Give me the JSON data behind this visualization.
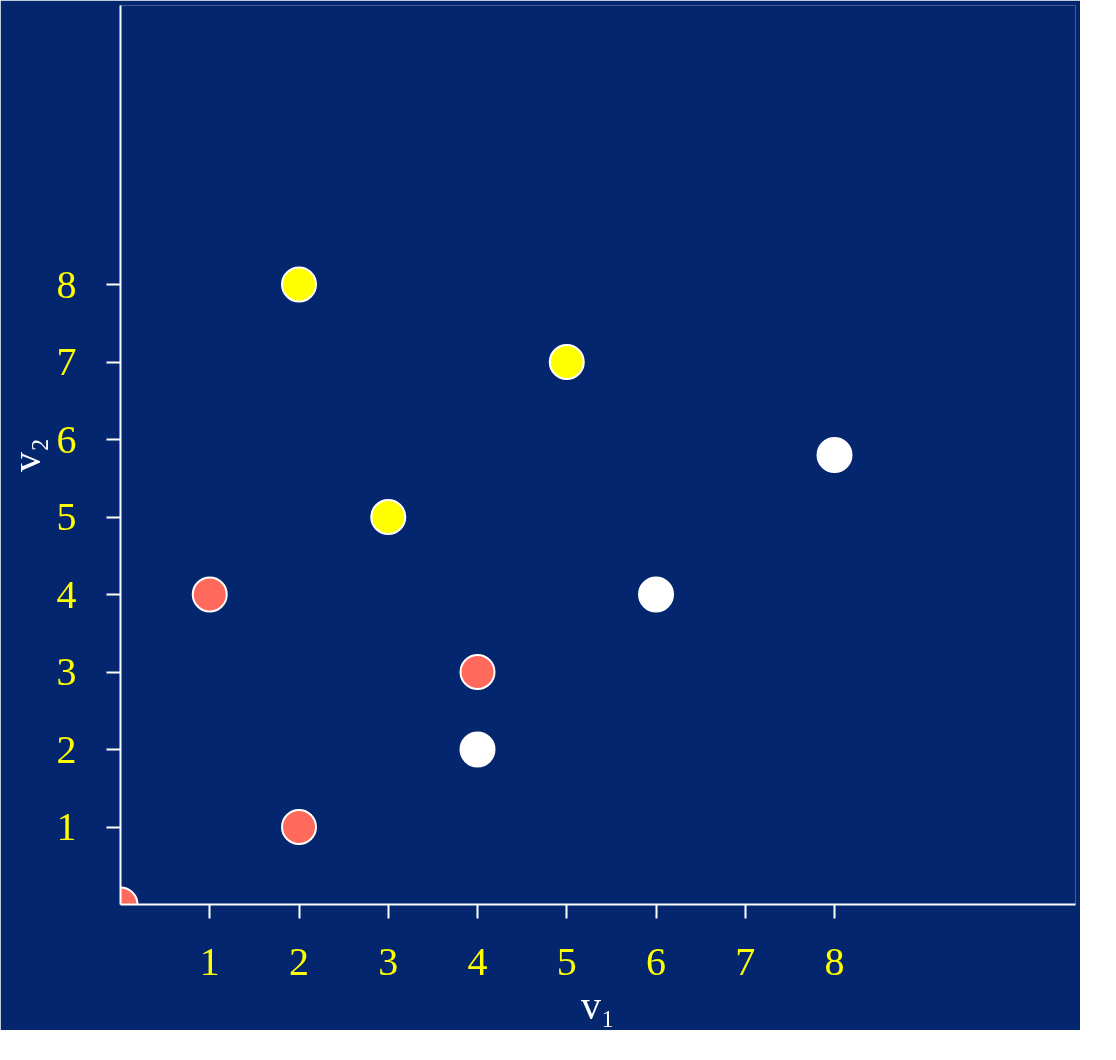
{
  "chart_data": {
    "type": "scatter",
    "xlabel": "v₁",
    "ylabel": "v₂",
    "xlim": [
      0,
      10.7
    ],
    "ylim": [
      0,
      11.6
    ],
    "xticks": [
      1,
      2,
      3,
      4,
      5,
      6,
      7,
      8
    ],
    "yticks": [
      1,
      2,
      3,
      4,
      5,
      6,
      7,
      8
    ],
    "marker": "circle",
    "series": [
      {
        "color": "#ff6a5c",
        "x": [
          0,
          1,
          2,
          4
        ],
        "values": [
          0,
          4,
          1,
          3
        ]
      },
      {
        "color": "#ffff00",
        "x": [
          2,
          3,
          5
        ],
        "values": [
          8,
          5,
          7
        ]
      },
      {
        "color": "#ffffff",
        "x": [
          4,
          6,
          8
        ],
        "values": [
          2,
          4,
          5.8
        ]
      }
    ]
  }
}
